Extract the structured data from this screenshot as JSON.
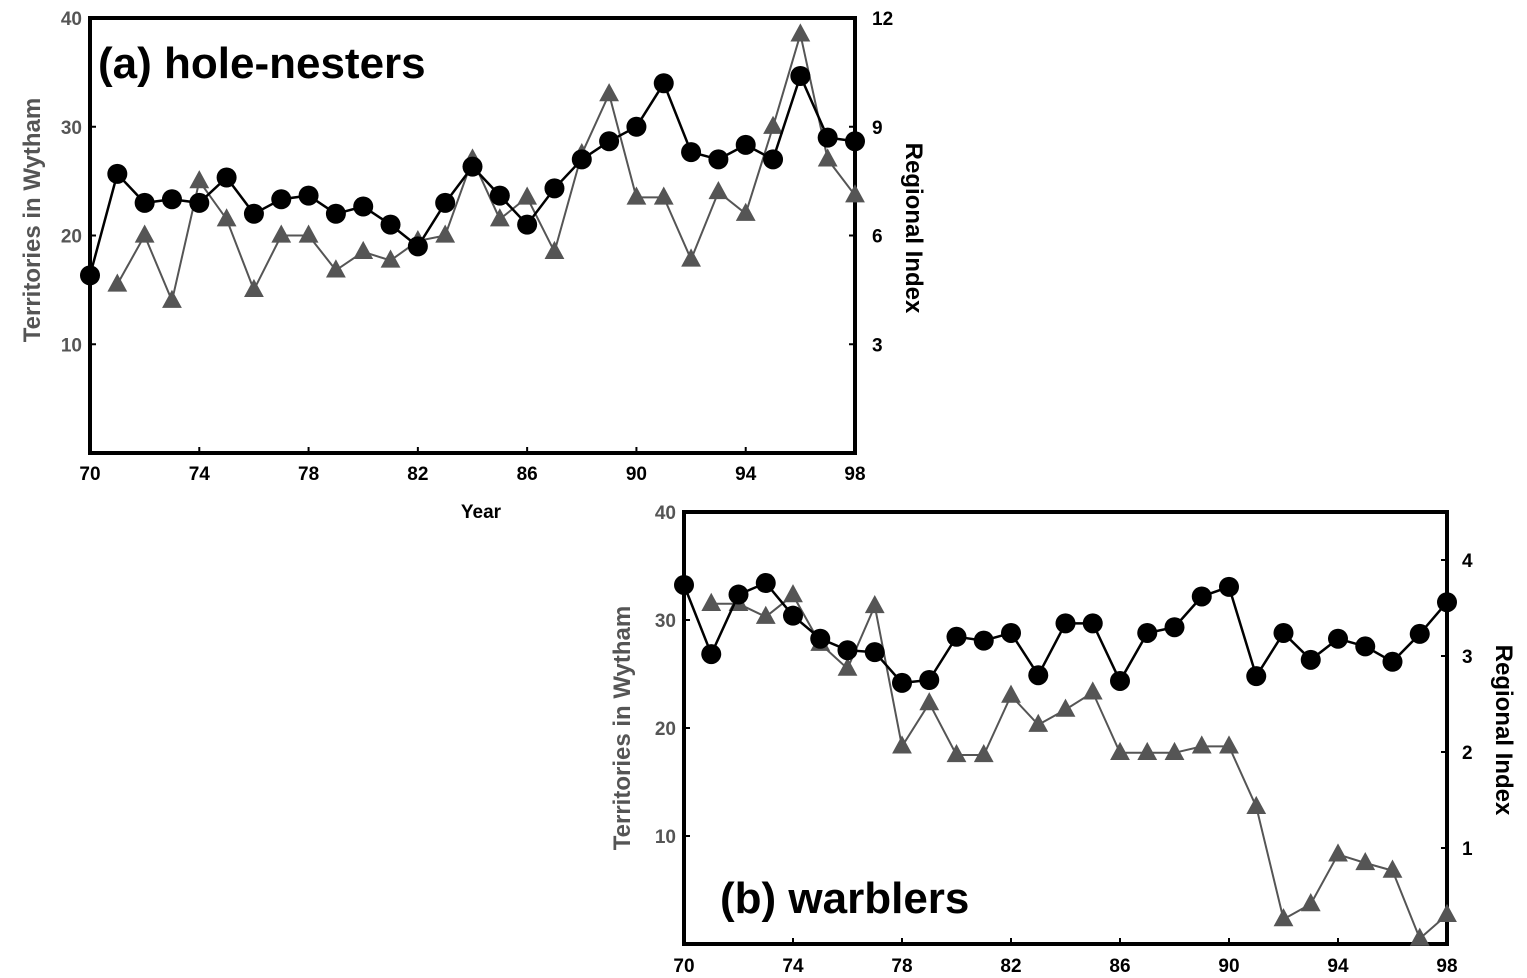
{
  "colors": {
    "wytham": "#555555",
    "regional": "#000000",
    "frame": "#000000"
  },
  "chart_data": [
    {
      "type": "line",
      "title": "(a) hole-nesters",
      "xlabel": "Year",
      "ylabel_left": "Territories in Wytham",
      "ylabel_right": "Regional Index",
      "xlim": [
        70,
        98
      ],
      "ylim_left": [
        0,
        40
      ],
      "ylim_right": [
        0,
        12
      ],
      "x_ticks": [
        "70",
        "74",
        "78",
        "82",
        "86",
        "90",
        "94",
        "98"
      ],
      "y_left_ticks": [
        "10",
        "20",
        "30",
        "40"
      ],
      "y_right_ticks": [
        "3",
        "6",
        "9",
        "12"
      ],
      "grid": false,
      "series": [
        {
          "axis": "left",
          "marker": "triangle",
          "x": [
            71,
            72,
            73,
            74,
            75,
            76,
            77,
            78,
            79,
            80,
            81,
            82,
            83,
            84,
            85,
            86,
            87,
            88,
            89,
            90,
            91,
            92,
            93,
            94,
            95,
            96,
            97,
            98
          ],
          "values": [
            15.5,
            20,
            14,
            25,
            21.5,
            15,
            20,
            20,
            16.8,
            18.5,
            17.7,
            19.5,
            20,
            27,
            21.5,
            23.5,
            18.5,
            27.5,
            33,
            23.5,
            23.5,
            17.8,
            24,
            22,
            30,
            38.5,
            27,
            23.7
          ]
        },
        {
          "axis": "right",
          "marker": "circle",
          "x": [
            70,
            71,
            72,
            73,
            74,
            75,
            76,
            77,
            78,
            79,
            80,
            81,
            82,
            83,
            84,
            85,
            86,
            87,
            88,
            89,
            90,
            91,
            92,
            93,
            94,
            95,
            96,
            97,
            98
          ],
          "values": [
            4.9,
            7.7,
            6.9,
            7.0,
            6.9,
            7.6,
            6.6,
            7.0,
            7.1,
            6.6,
            6.8,
            6.3,
            5.7,
            6.9,
            7.9,
            7.1,
            6.3,
            7.3,
            8.1,
            8.6,
            9.0,
            10.2,
            8.3,
            8.1,
            8.5,
            8.1,
            10.4,
            8.7,
            8.6
          ]
        }
      ]
    },
    {
      "type": "line",
      "title": "(b) warblers",
      "xlabel": "",
      "ylabel_left": "Territories in Wytham",
      "ylabel_right": "Regional Index",
      "xlim": [
        70,
        98
      ],
      "ylim_left": [
        0,
        40
      ],
      "ylim_right": [
        0,
        4.5
      ],
      "x_ticks": [
        "70",
        "74",
        "78",
        "82",
        "86",
        "90",
        "94",
        "98"
      ],
      "y_left_ticks": [
        "10",
        "20",
        "30",
        "40"
      ],
      "y_right_ticks": [
        "1",
        "2",
        "3",
        "4"
      ],
      "grid": false,
      "series": [
        {
          "axis": "left",
          "marker": "triangle",
          "x": [
            71,
            72,
            73,
            74,
            75,
            76,
            77,
            78,
            79,
            80,
            81,
            82,
            83,
            84,
            85,
            86,
            87,
            88,
            89,
            90,
            91,
            92,
            93,
            94,
            95,
            96,
            97,
            98
          ],
          "values": [
            31.5,
            31.5,
            30.3,
            32.3,
            27.8,
            25.5,
            31.3,
            18.3,
            22.3,
            17.5,
            17.5,
            23.0,
            20.3,
            21.7,
            23.3,
            17.7,
            17.7,
            17.7,
            18.3,
            18.3,
            12.7,
            2.3,
            3.7,
            8.3,
            7.5,
            6.8,
            0.5,
            2.7
          ]
        },
        {
          "axis": "right",
          "marker": "circle",
          "x": [
            70,
            71,
            72,
            73,
            74,
            75,
            76,
            77,
            78,
            79,
            80,
            81,
            82,
            83,
            84,
            85,
            86,
            87,
            88,
            89,
            90,
            91,
            92,
            93,
            94,
            95,
            96,
            97,
            98
          ],
          "values": [
            3.74,
            3.02,
            3.64,
            3.76,
            3.42,
            3.18,
            3.06,
            3.04,
            2.72,
            2.75,
            3.2,
            3.16,
            3.24,
            2.8,
            3.34,
            3.34,
            2.74,
            3.24,
            3.3,
            3.62,
            3.72,
            2.79,
            3.24,
            2.96,
            3.18,
            3.1,
            2.94,
            3.23,
            3.56
          ]
        }
      ]
    }
  ]
}
